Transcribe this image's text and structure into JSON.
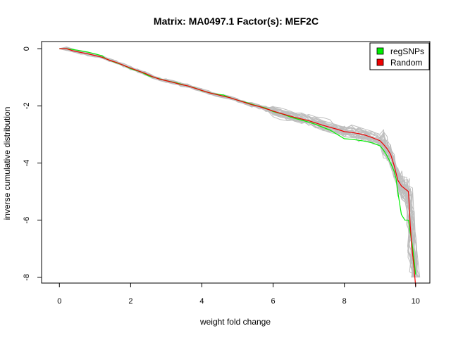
{
  "chart_data": {
    "type": "line",
    "title": "Matrix: MA0497.1 Factor(s): MEF2C",
    "xlabel": "weight fold change",
    "ylabel": "inverse cumulative distribution",
    "xlim": [
      -0.5,
      10.4
    ],
    "ylim": [
      -8.2,
      0.25
    ],
    "xticks": [
      "0",
      "2",
      "4",
      "6",
      "8",
      "10"
    ],
    "yticks": [
      "0",
      "-2",
      "-4",
      "-6",
      "-8"
    ],
    "grid": false,
    "legend_position": "top-right",
    "series": [
      {
        "name": "regSNPs",
        "color": "#00ee00",
        "x": [
          0,
          0.2,
          0.5,
          0.8,
          1.0,
          1.2,
          1.3,
          1.5,
          1.8,
          2.0,
          2.3,
          2.5,
          2.8,
          3.0,
          3.3,
          3.5,
          3.8,
          4.0,
          4.3,
          4.6,
          4.8,
          5.0,
          5.3,
          5.5,
          5.8,
          6.0,
          6.3,
          6.5,
          6.8,
          7.0,
          7.2,
          7.4,
          7.6,
          7.8,
          8.0,
          8.2,
          8.5,
          8.8,
          9.0,
          9.1,
          9.2,
          9.3,
          9.4,
          9.45,
          9.5,
          9.55,
          9.6,
          9.7,
          9.8,
          9.85,
          9.9,
          9.95,
          10.0
        ],
        "y": [
          0,
          0,
          -0.05,
          -0.12,
          -0.18,
          -0.25,
          -0.35,
          -0.45,
          -0.58,
          -0.7,
          -0.82,
          -0.95,
          -1.05,
          -1.12,
          -1.2,
          -1.27,
          -1.37,
          -1.47,
          -1.57,
          -1.62,
          -1.72,
          -1.8,
          -1.9,
          -1.98,
          -2.08,
          -2.2,
          -2.3,
          -2.4,
          -2.5,
          -2.57,
          -2.65,
          -2.75,
          -2.85,
          -3.0,
          -3.15,
          -3.17,
          -3.22,
          -3.3,
          -3.4,
          -3.55,
          -3.75,
          -4.0,
          -4.3,
          -4.55,
          -5.0,
          -5.4,
          -5.8,
          -6.0,
          -6.0,
          -6.45,
          -6.8,
          -7.3,
          -7.9
        ]
      },
      {
        "name": "Random",
        "color": "#ee0000",
        "x": [
          0,
          0.2,
          0.4,
          0.6,
          0.8,
          1.0,
          1.2,
          1.4,
          1.6,
          1.8,
          2.0,
          2.2,
          2.4,
          2.6,
          2.8,
          3.0,
          3.2,
          3.4,
          3.6,
          3.8,
          4.0,
          4.2,
          4.4,
          4.6,
          4.8,
          5.0,
          5.2,
          5.4,
          5.6,
          5.8,
          6.0,
          6.2,
          6.4,
          6.6,
          6.8,
          7.0,
          7.2,
          7.4,
          7.6,
          7.8,
          8.0,
          8.2,
          8.4,
          8.6,
          8.8,
          9.0,
          9.1,
          9.2,
          9.3,
          9.4,
          9.5,
          9.6,
          9.7,
          9.8,
          9.85,
          9.9,
          9.95,
          10.0
        ],
        "y": [
          0,
          0,
          -0.08,
          -0.13,
          -0.18,
          -0.24,
          -0.3,
          -0.4,
          -0.48,
          -0.58,
          -0.68,
          -0.77,
          -0.86,
          -0.97,
          -1.06,
          -1.12,
          -1.18,
          -1.25,
          -1.3,
          -1.38,
          -1.46,
          -1.54,
          -1.6,
          -1.66,
          -1.72,
          -1.8,
          -1.88,
          -1.96,
          -2.02,
          -2.1,
          -2.18,
          -2.26,
          -2.33,
          -2.4,
          -2.46,
          -2.52,
          -2.6,
          -2.68,
          -2.75,
          -2.82,
          -2.9,
          -2.93,
          -2.97,
          -3.03,
          -3.12,
          -3.22,
          -3.35,
          -3.5,
          -3.7,
          -4.1,
          -4.6,
          -4.8,
          -4.9,
          -5.0,
          -6.2,
          -7.0,
          -7.6,
          -8.3
        ]
      }
    ]
  }
}
